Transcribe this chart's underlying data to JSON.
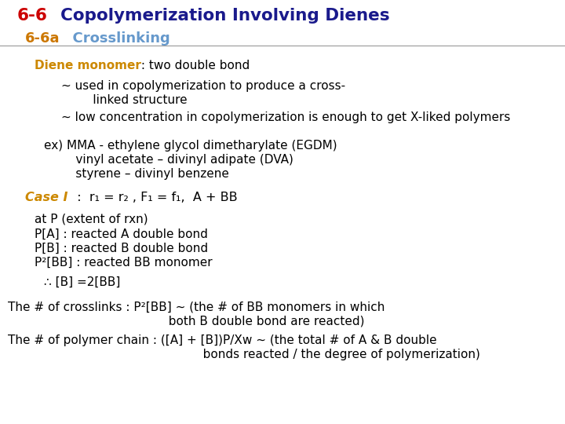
{
  "bg_color": "#ffffff",
  "title_66_color": "#cc0000",
  "title_text_color": "#1a1a8c",
  "subtitle_66a_color": "#cc7700",
  "subtitle_cross_color": "#6699cc",
  "diene_label_color": "#cc8800",
  "case_label_color": "#cc8800",
  "body_color": "#000000",
  "separator_color": "#999999",
  "title_66": "6-6",
  "title_main": "  Copolymerization Involving Dienes",
  "subtitle_66a": "6-6a",
  "subtitle_cross": "  Crosslinking",
  "diene_label": "Diene monomer",
  "diene_rest": " : two double bond",
  "case_label": "Case I",
  "case_rest": "  :  r₁ = r₂ , F₁ = f₁,  A + BB",
  "bullet1": "~ used in copolymerization to produce a cross-",
  "bullet1b": "     linked structure",
  "bullet2": "~ low concentration in copolymerization is enough to get X-liked polymers",
  "ex1": "ex) MMA - ethylene glycol dimetharylate (EGDM)",
  "ex2": "     vinyl acetate – divinyl adipate (DVA)",
  "ex3": "     styrene – divinyl benzene",
  "at_p": "at P (extent of rxn)",
  "pa": "P[A] : reacted A double bond",
  "pb": "P[B] : reacted B double bond",
  "pbb": "P²[BB] : reacted BB monomer",
  "therefore": "∴ [B] =2[BB]",
  "cross1": "The # of crosslinks : P²[BB] ~ (the # of BB monomers in which",
  "cross2": "                                          both B double bond are reacted)",
  "poly1": "The # of polymer chain : ([A] + [B])P/Xw ~ (the total # of A & B double",
  "poly2": "                                                   bonds reacted / the degree of polymerization)"
}
